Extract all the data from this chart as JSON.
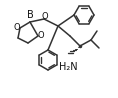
{
  "bg_color": "#ffffff",
  "line_color": "#333333",
  "line_width": 1.1,
  "text_color": "#111111",
  "figsize": [
    1.18,
    0.98
  ],
  "dpi": 100,
  "xlim": [
    0,
    118
  ],
  "ylim": [
    0,
    98
  ]
}
